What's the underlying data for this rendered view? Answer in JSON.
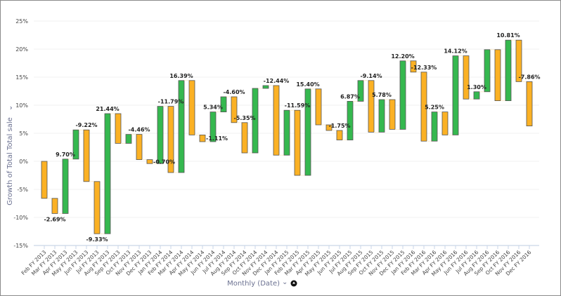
{
  "chart_data": {
    "type": "waterfall",
    "ylabel": "Growth of Total Total sale",
    "xlabel": "Monthly (Date)",
    "ylim": [
      -15,
      25
    ],
    "yticks": [
      "-15%",
      "-10%",
      "-5%",
      "0%",
      "5%",
      "10%",
      "15%",
      "20%",
      "25%"
    ],
    "ytick_values": [
      -15,
      -10,
      -5,
      0,
      5,
      10,
      15,
      20,
      25
    ],
    "grid": true,
    "colors": {
      "increase": "#35b84f",
      "decrease": "#fbb124",
      "stroke": "#555555"
    },
    "bars": [
      {
        "month": "Feb FY 2013",
        "start": 0,
        "end": -6.6,
        "label": ""
      },
      {
        "month": "Mar FY 2013",
        "start": -6.6,
        "end": -9.3,
        "label": "-2.69%"
      },
      {
        "month": "Apr FY 2013",
        "start": -9.3,
        "end": 0.4,
        "label": "9.70%"
      },
      {
        "month": "May FY 2013",
        "start": 0.4,
        "end": 5.6,
        "label": ""
      },
      {
        "month": "Jun FY 2013",
        "start": 5.6,
        "end": -3.6,
        "label": "-9.22%"
      },
      {
        "month": "Jul FY 2013",
        "start": -3.6,
        "end": -12.9,
        "label": "-9.33%"
      },
      {
        "month": "Aug FY 2013",
        "start": -12.9,
        "end": 8.5,
        "label": "21.44%"
      },
      {
        "month": "Sep FY 2013",
        "start": 8.5,
        "end": 3.2,
        "label": ""
      },
      {
        "month": "Oct FY 2013",
        "start": 3.2,
        "end": 4.8,
        "label": ""
      },
      {
        "month": "Nov FY 2013",
        "start": 4.8,
        "end": 0.3,
        "label": "-4.46%"
      },
      {
        "month": "Dec FY 2013",
        "start": 0.3,
        "end": -0.4,
        "label": "-0.70%"
      },
      {
        "month": "Jan FY 2014",
        "start": -0.4,
        "end": 9.8,
        "label": ""
      },
      {
        "month": "Feb FY 2014",
        "start": 9.8,
        "end": -2.0,
        "label": "-11.79%"
      },
      {
        "month": "Mar FY 2014",
        "start": -2.0,
        "end": 14.4,
        "label": "16.39%"
      },
      {
        "month": "Apr FY 2014",
        "start": 14.4,
        "end": 4.7,
        "label": ""
      },
      {
        "month": "May FY 2014",
        "start": 4.7,
        "end": 3.5,
        "label": "-1.11%"
      },
      {
        "month": "Jun FY 2014",
        "start": 3.5,
        "end": 8.8,
        "label": "5.34%"
      },
      {
        "month": "Jul FY 2014",
        "start": 8.8,
        "end": 11.5,
        "label": ""
      },
      {
        "month": "Aug FY 2014",
        "start": 11.5,
        "end": 6.9,
        "label": "-4.60%"
      },
      {
        "month": "Sep FY 2014",
        "start": 6.9,
        "end": 1.5,
        "label": "-5.35%"
      },
      {
        "month": "Oct FY 2014",
        "start": 1.5,
        "end": 13.0,
        "label": ""
      },
      {
        "month": "Nov FY 2014",
        "start": 13.0,
        "end": 13.5,
        "label": ""
      },
      {
        "month": "Dec FY 2014",
        "start": 13.5,
        "end": 1.1,
        "label": "-12.44%"
      },
      {
        "month": "Jan FY 2015",
        "start": 1.1,
        "end": 9.1,
        "label": ""
      },
      {
        "month": "Feb FY 2015",
        "start": 9.1,
        "end": -2.5,
        "label": "-11.59%"
      },
      {
        "month": "Mar FY 2015",
        "start": -2.5,
        "end": 12.9,
        "label": "15.40%"
      },
      {
        "month": "Apr FY 2015",
        "start": 12.9,
        "end": 6.5,
        "label": ""
      },
      {
        "month": "May FY 2015",
        "start": 6.5,
        "end": 5.5,
        "label": ""
      },
      {
        "month": "Jun FY 2015",
        "start": 5.5,
        "end": 3.8,
        "label": "-1.75%"
      },
      {
        "month": "Jul FY 2015",
        "start": 3.8,
        "end": 10.7,
        "label": "6.87%"
      },
      {
        "month": "Aug FY 2015",
        "start": 10.7,
        "end": 14.4,
        "label": ""
      },
      {
        "month": "Sep FY 2015",
        "start": 14.4,
        "end": 5.2,
        "label": "-9.14%"
      },
      {
        "month": "Oct FY 2015",
        "start": 5.2,
        "end": 11.0,
        "label": "5.78%"
      },
      {
        "month": "Nov FY 2015",
        "start": 11.0,
        "end": 5.7,
        "label": ""
      },
      {
        "month": "Dec FY 2015",
        "start": 5.7,
        "end": 17.9,
        "label": "12.20%"
      },
      {
        "month": "Jan FY 2016",
        "start": 17.9,
        "end": 15.9,
        "label": ""
      },
      {
        "month": "Feb FY 2016",
        "start": 15.9,
        "end": 3.6,
        "label": "-12.33%"
      },
      {
        "month": "Mar FY 2016",
        "start": 3.6,
        "end": 8.8,
        "label": "5.25%"
      },
      {
        "month": "Apr FY 2016",
        "start": 8.8,
        "end": 4.7,
        "label": ""
      },
      {
        "month": "May FY 2016",
        "start": 4.7,
        "end": 18.8,
        "label": "14.12%"
      },
      {
        "month": "Jun FY 2016",
        "start": 18.8,
        "end": 11.1,
        "label": ""
      },
      {
        "month": "Jul FY 2016",
        "start": 11.1,
        "end": 12.4,
        "label": "1.30%"
      },
      {
        "month": "Aug FY 2016",
        "start": 12.4,
        "end": 19.9,
        "label": ""
      },
      {
        "month": "Sep FY 2016",
        "start": 19.9,
        "end": 10.8,
        "label": ""
      },
      {
        "month": "Oct FY 2016",
        "start": 10.8,
        "end": 21.6,
        "label": "10.81%"
      },
      {
        "month": "Nov FY 2016",
        "start": 21.6,
        "end": 14.2,
        "label": ""
      },
      {
        "month": "Dec FY 2016",
        "start": 14.2,
        "end": 6.3,
        "label": "-7.86%"
      }
    ]
  },
  "icons": {
    "axis_menu": "chevron-down-icon",
    "sort": "circle-arrow-icon"
  }
}
